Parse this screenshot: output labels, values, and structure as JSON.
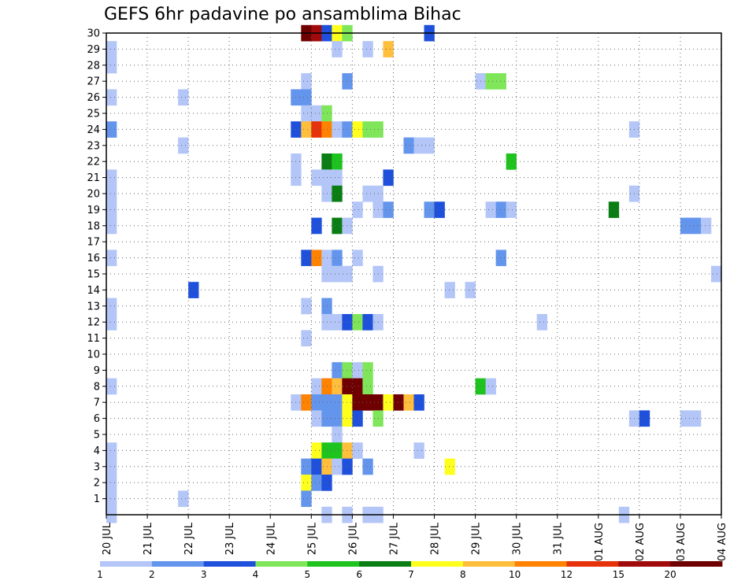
{
  "chart_data": {
    "type": "heatmap",
    "title": "GEFS 6hr padavine po ansamblima Bihac",
    "xlabel": "",
    "ylabel": "",
    "x_ticks": [
      "20 JUL",
      "21 JUL",
      "22 JUL",
      "23 JUL",
      "24 JUL",
      "25 JUL",
      "26 JUL",
      "27 JUL",
      "28 JUL",
      "29 JUL",
      "30 JUL",
      "31 JUL",
      "01 AUG",
      "02 AUG",
      "03 AUG",
      "04 AUG"
    ],
    "y_ticks": [
      "1",
      "2",
      "3",
      "4",
      "5",
      "6",
      "7",
      "8",
      "9",
      "10",
      "11",
      "12",
      "13",
      "14",
      "15",
      "16",
      "17",
      "18",
      "19",
      "20",
      "21",
      "22",
      "23",
      "24",
      "25",
      "26",
      "27",
      "28",
      "29",
      "30"
    ],
    "x_range_days": [
      0,
      15
    ],
    "y_range": [
      0,
      30
    ],
    "grid": true,
    "colorbar": {
      "labels": [
        "1",
        "2",
        "3",
        "4",
        "5",
        "6",
        "7",
        "8",
        "10",
        "12",
        "15",
        "20"
      ],
      "colors": [
        "#b3c6f7",
        "#6495ed",
        "#1e50dc",
        "#7fe65a",
        "#1ec31e",
        "#0a7d14",
        "#ffff1e",
        "#ffbe3c",
        "#ff8200",
        "#e6320a",
        "#a00a0a",
        "#6e0000"
      ]
    },
    "cells": [
      {
        "m": 30,
        "d": 4.75,
        "c": 11
      },
      {
        "m": 30,
        "d": 5.0,
        "c": 10
      },
      {
        "m": 30,
        "d": 5.25,
        "c": 2
      },
      {
        "m": 30,
        "d": 5.5,
        "c": 6
      },
      {
        "m": 30,
        "d": 5.75,
        "c": 3
      },
      {
        "m": 30,
        "d": 7.75,
        "c": 2
      },
      {
        "m": 29,
        "d": 0.0,
        "c": 0
      },
      {
        "m": 29,
        "d": 5.5,
        "c": 0
      },
      {
        "m": 29,
        "d": 6.25,
        "c": 0
      },
      {
        "m": 29,
        "d": 6.75,
        "c": 7
      },
      {
        "m": 28,
        "d": 0.0,
        "c": 0
      },
      {
        "m": 27,
        "d": 4.75,
        "c": 0
      },
      {
        "m": 27,
        "d": 5.75,
        "c": 1
      },
      {
        "m": 27,
        "d": 9.0,
        "c": 0
      },
      {
        "m": 27,
        "d": 9.25,
        "c": 3
      },
      {
        "m": 27,
        "d": 9.5,
        "c": 3
      },
      {
        "m": 26,
        "d": 0.0,
        "c": 0
      },
      {
        "m": 26,
        "d": 1.75,
        "c": 0
      },
      {
        "m": 26,
        "d": 4.5,
        "c": 1
      },
      {
        "m": 26,
        "d": 4.75,
        "c": 1
      },
      {
        "m": 25,
        "d": 4.75,
        "c": 0
      },
      {
        "m": 25,
        "d": 5.0,
        "c": 0
      },
      {
        "m": 25,
        "d": 5.25,
        "c": 3
      },
      {
        "m": 24,
        "d": 0.0,
        "c": 1
      },
      {
        "m": 24,
        "d": 4.5,
        "c": 2
      },
      {
        "m": 24,
        "d": 4.75,
        "c": 7
      },
      {
        "m": 24,
        "d": 5.0,
        "c": 9
      },
      {
        "m": 24,
        "d": 5.25,
        "c": 8
      },
      {
        "m": 24,
        "d": 5.5,
        "c": 0
      },
      {
        "m": 24,
        "d": 5.75,
        "c": 1
      },
      {
        "m": 24,
        "d": 6.0,
        "c": 6
      },
      {
        "m": 24,
        "d": 6.25,
        "c": 3
      },
      {
        "m": 24,
        "d": 6.5,
        "c": 3
      },
      {
        "m": 24,
        "d": 12.75,
        "c": 0
      },
      {
        "m": 23,
        "d": 1.75,
        "c": 0
      },
      {
        "m": 23,
        "d": 7.25,
        "c": 1
      },
      {
        "m": 23,
        "d": 7.5,
        "c": 0
      },
      {
        "m": 23,
        "d": 7.75,
        "c": 0
      },
      {
        "m": 22,
        "d": 4.5,
        "c": 0
      },
      {
        "m": 22,
        "d": 5.25,
        "c": 5
      },
      {
        "m": 22,
        "d": 5.5,
        "c": 4
      },
      {
        "m": 22,
        "d": 9.75,
        "c": 4
      },
      {
        "m": 21,
        "d": 0.0,
        "c": 0
      },
      {
        "m": 21,
        "d": 4.5,
        "c": 0
      },
      {
        "m": 21,
        "d": 5.0,
        "c": 0
      },
      {
        "m": 21,
        "d": 5.25,
        "c": 0
      },
      {
        "m": 21,
        "d": 5.5,
        "c": 0
      },
      {
        "m": 21,
        "d": 6.75,
        "c": 2
      },
      {
        "m": 20,
        "d": 0.0,
        "c": 0
      },
      {
        "m": 20,
        "d": 5.25,
        "c": 0
      },
      {
        "m": 20,
        "d": 5.5,
        "c": 5
      },
      {
        "m": 20,
        "d": 6.25,
        "c": 0
      },
      {
        "m": 20,
        "d": 6.5,
        "c": 0
      },
      {
        "m": 20,
        "d": 12.75,
        "c": 0
      },
      {
        "m": 19,
        "d": 0.0,
        "c": 0
      },
      {
        "m": 19,
        "d": 6.0,
        "c": 0
      },
      {
        "m": 19,
        "d": 6.5,
        "c": 0
      },
      {
        "m": 19,
        "d": 6.75,
        "c": 1
      },
      {
        "m": 19,
        "d": 7.75,
        "c": 1
      },
      {
        "m": 19,
        "d": 8.0,
        "c": 2
      },
      {
        "m": 19,
        "d": 9.25,
        "c": 0
      },
      {
        "m": 19,
        "d": 9.5,
        "c": 1
      },
      {
        "m": 19,
        "d": 9.75,
        "c": 0
      },
      {
        "m": 19,
        "d": 12.25,
        "c": 5
      },
      {
        "m": 18,
        "d": 0.0,
        "c": 0
      },
      {
        "m": 18,
        "d": 5.0,
        "c": 2
      },
      {
        "m": 18,
        "d": 5.5,
        "c": 5
      },
      {
        "m": 18,
        "d": 5.75,
        "c": 0
      },
      {
        "m": 18,
        "d": 14.0,
        "c": 1
      },
      {
        "m": 18,
        "d": 14.25,
        "c": 1
      },
      {
        "m": 18,
        "d": 14.5,
        "c": 0
      },
      {
        "m": 16,
        "d": 0.0,
        "c": 0
      },
      {
        "m": 16,
        "d": 4.75,
        "c": 2
      },
      {
        "m": 16,
        "d": 5.0,
        "c": 8
      },
      {
        "m": 16,
        "d": 5.25,
        "c": 0
      },
      {
        "m": 16,
        "d": 5.5,
        "c": 1
      },
      {
        "m": 16,
        "d": 6.0,
        "c": 0
      },
      {
        "m": 16,
        "d": 9.5,
        "c": 1
      },
      {
        "m": 15,
        "d": 5.25,
        "c": 0
      },
      {
        "m": 15,
        "d": 5.5,
        "c": 0
      },
      {
        "m": 15,
        "d": 5.75,
        "c": 0
      },
      {
        "m": 15,
        "d": 6.5,
        "c": 0
      },
      {
        "m": 15,
        "d": 14.75,
        "c": 0
      },
      {
        "m": 14,
        "d": 2.0,
        "c": 2
      },
      {
        "m": 14,
        "d": 8.25,
        "c": 0
      },
      {
        "m": 14,
        "d": 8.75,
        "c": 0
      },
      {
        "m": 13,
        "d": 0.0,
        "c": 0
      },
      {
        "m": 13,
        "d": 4.75,
        "c": 0
      },
      {
        "m": 13,
        "d": 5.25,
        "c": 1
      },
      {
        "m": 12,
        "d": 0.0,
        "c": 0
      },
      {
        "m": 12,
        "d": 5.25,
        "c": 0
      },
      {
        "m": 12,
        "d": 5.5,
        "c": 0
      },
      {
        "m": 12,
        "d": 5.75,
        "c": 2
      },
      {
        "m": 12,
        "d": 6.0,
        "c": 3
      },
      {
        "m": 12,
        "d": 6.25,
        "c": 2
      },
      {
        "m": 12,
        "d": 6.5,
        "c": 0
      },
      {
        "m": 12,
        "d": 10.5,
        "c": 0
      },
      {
        "m": 11,
        "d": 4.75,
        "c": 0
      },
      {
        "m": 9,
        "d": 5.5,
        "c": 1
      },
      {
        "m": 9,
        "d": 5.75,
        "c": 3
      },
      {
        "m": 9,
        "d": 6.0,
        "c": 0
      },
      {
        "m": 9,
        "d": 6.25,
        "c": 3
      },
      {
        "m": 8,
        "d": 0.0,
        "c": 0
      },
      {
        "m": 8,
        "d": 5.0,
        "c": 0
      },
      {
        "m": 8,
        "d": 5.25,
        "c": 8
      },
      {
        "m": 8,
        "d": 5.5,
        "c": 7
      },
      {
        "m": 8,
        "d": 5.75,
        "c": 11
      },
      {
        "m": 8,
        "d": 6.0,
        "c": 11
      },
      {
        "m": 8,
        "d": 6.25,
        "c": 3
      },
      {
        "m": 8,
        "d": 9.0,
        "c": 4
      },
      {
        "m": 8,
        "d": 9.25,
        "c": 0
      },
      {
        "m": 7,
        "d": 4.5,
        "c": 0
      },
      {
        "m": 7,
        "d": 4.75,
        "c": 8
      },
      {
        "m": 7,
        "d": 5.0,
        "c": 1
      },
      {
        "m": 7,
        "d": 5.25,
        "c": 1
      },
      {
        "m": 7,
        "d": 5.5,
        "c": 1
      },
      {
        "m": 7,
        "d": 5.75,
        "c": 6
      },
      {
        "m": 7,
        "d": 6.0,
        "c": 11
      },
      {
        "m": 7,
        "d": 6.25,
        "c": 11
      },
      {
        "m": 7,
        "d": 6.5,
        "c": 11
      },
      {
        "m": 7,
        "d": 6.75,
        "c": 6
      },
      {
        "m": 7,
        "d": 7.0,
        "c": 11
      },
      {
        "m": 7,
        "d": 7.25,
        "c": 7
      },
      {
        "m": 7,
        "d": 7.5,
        "c": 2
      },
      {
        "m": 6,
        "d": 5.0,
        "c": 0
      },
      {
        "m": 6,
        "d": 5.25,
        "c": 1
      },
      {
        "m": 6,
        "d": 5.5,
        "c": 1
      },
      {
        "m": 6,
        "d": 5.75,
        "c": 6
      },
      {
        "m": 6,
        "d": 6.0,
        "c": 2
      },
      {
        "m": 6,
        "d": 6.5,
        "c": 3
      },
      {
        "m": 6,
        "d": 12.75,
        "c": 0
      },
      {
        "m": 6,
        "d": 13.0,
        "c": 2
      },
      {
        "m": 6,
        "d": 14.0,
        "c": 0
      },
      {
        "m": 6,
        "d": 14.25,
        "c": 0
      },
      {
        "m": 5,
        "d": 5.5,
        "c": 0
      },
      {
        "m": 4,
        "d": 0.0,
        "c": 0
      },
      {
        "m": 4,
        "d": 5.0,
        "c": 6
      },
      {
        "m": 4,
        "d": 5.25,
        "c": 4
      },
      {
        "m": 4,
        "d": 5.5,
        "c": 4
      },
      {
        "m": 4,
        "d": 5.75,
        "c": 7
      },
      {
        "m": 4,
        "d": 6.0,
        "c": 0
      },
      {
        "m": 4,
        "d": 7.5,
        "c": 0
      },
      {
        "m": 3,
        "d": 0.0,
        "c": 0
      },
      {
        "m": 3,
        "d": 4.75,
        "c": 1
      },
      {
        "m": 3,
        "d": 5.0,
        "c": 2
      },
      {
        "m": 3,
        "d": 5.25,
        "c": 7
      },
      {
        "m": 3,
        "d": 5.5,
        "c": 0
      },
      {
        "m": 3,
        "d": 5.75,
        "c": 2
      },
      {
        "m": 3,
        "d": 6.25,
        "c": 1
      },
      {
        "m": 3,
        "d": 8.25,
        "c": 6
      },
      {
        "m": 2,
        "d": 0.0,
        "c": 0
      },
      {
        "m": 2,
        "d": 4.75,
        "c": 6
      },
      {
        "m": 2,
        "d": 5.0,
        "c": 1
      },
      {
        "m": 2,
        "d": 5.25,
        "c": 2
      },
      {
        "m": 1,
        "d": 0.0,
        "c": 0
      },
      {
        "m": 1,
        "d": 1.75,
        "c": 0
      },
      {
        "m": 1,
        "d": 4.75,
        "c": 1
      },
      {
        "m": 0,
        "d": 0.0,
        "c": 0
      },
      {
        "m": 0,
        "d": 5.25,
        "c": 0
      },
      {
        "m": 0,
        "d": 5.75,
        "c": 0
      },
      {
        "m": 0,
        "d": 6.25,
        "c": 0
      },
      {
        "m": 0,
        "d": 6.5,
        "c": 0
      },
      {
        "m": 0,
        "d": 12.5,
        "c": 0
      }
    ]
  }
}
